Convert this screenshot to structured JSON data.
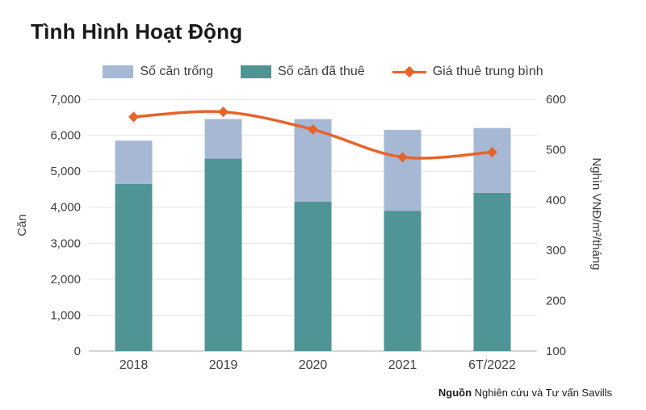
{
  "title": "Tình Hình Hoạt Động",
  "source": {
    "bold": "Nguồn",
    "rest": " Nghiên cứu và Tư vấn Savills"
  },
  "chart_data": {
    "type": "bar",
    "subtype": "stacked-bar-with-line",
    "title": "Tình Hình Hoạt Động",
    "categories": [
      "2018",
      "2019",
      "2020",
      "2021",
      "6T/2022"
    ],
    "bar_series": [
      {
        "name": "Số căn đã thuê",
        "color": "#4f9595",
        "values": [
          4650,
          5350,
          4150,
          3900,
          4400
        ]
      },
      {
        "name": "Số căn trống",
        "color": "#a6b8d4",
        "values": [
          1200,
          1100,
          2300,
          2250,
          1800
        ]
      }
    ],
    "line_series": {
      "name": "Giá thuê trung bình",
      "color": "#e8632a",
      "axis": "right",
      "values": [
        565,
        575,
        540,
        485,
        495
      ]
    },
    "left_axis": {
      "label": "Căn",
      "min": 0,
      "max": 7000,
      "step": 1000
    },
    "right_axis": {
      "label": "Nghìn VNĐ/m²/tháng",
      "min": 100,
      "max": 600,
      "step": 100
    },
    "legend": [
      "Số căn trống",
      "Số căn đã thuê",
      "Giá thuê trung bình"
    ],
    "legend_position": "top",
    "grid": true,
    "grid_color": "#e2e2e2",
    "axis_text_color": "#404040"
  }
}
